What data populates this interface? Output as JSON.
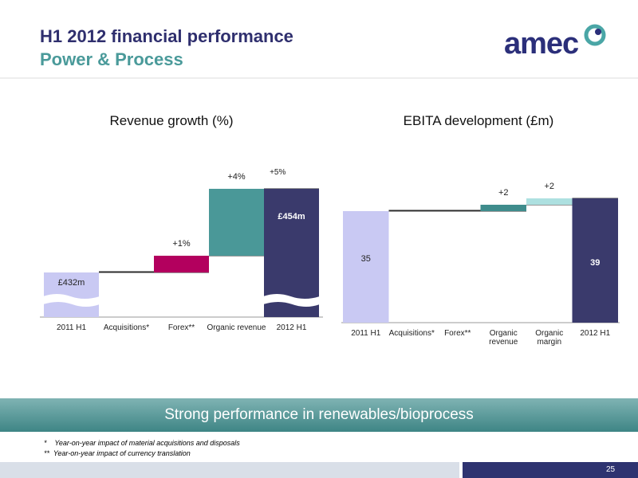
{
  "header": {
    "title": "H1 2012 financial performance",
    "subtitle": "Power & Process",
    "logo": "amec"
  },
  "chart_data": [
    {
      "type": "waterfall",
      "title": "Revenue growth (%)",
      "broken_axis": true,
      "categories": [
        "2011 H1",
        "Acquisitions*",
        "Forex**",
        "Organic revenue",
        "2012 H1"
      ],
      "values": [
        432,
        0,
        1,
        4,
        454
      ],
      "value_labels": [
        "£432m",
        null,
        "+1%",
        "+4%",
        "£454m"
      ],
      "total_change": {
        "value": 5,
        "label": "+5%"
      },
      "colors": [
        "#c9c9f3",
        "#2b2b2b",
        "#b3005e",
        "#4a9898",
        "#3a3a6c"
      ]
    },
    {
      "type": "waterfall",
      "title": "EBITA development (£m)",
      "broken_axis": false,
      "categories": [
        "2011 H1",
        "Acquisitions*",
        "Forex**",
        "Organic revenue",
        "Organic margin",
        "2012 H1"
      ],
      "values": [
        35,
        0,
        0,
        2,
        2,
        39
      ],
      "value_labels": [
        "35",
        null,
        null,
        "+2",
        "+2",
        "39"
      ],
      "colors": [
        "#c9c9f3",
        "#2b2b2b",
        "#2b2b2b",
        "#3f8c8c",
        "#ade0e0",
        "#3a3a6c"
      ]
    }
  ],
  "banner": "Strong performance in renewables/bioprocess",
  "footnotes": [
    "*    Year-on-year impact of material acquisitions and disposals",
    "**  Year-on-year impact of currency translation"
  ],
  "page_number": "25"
}
